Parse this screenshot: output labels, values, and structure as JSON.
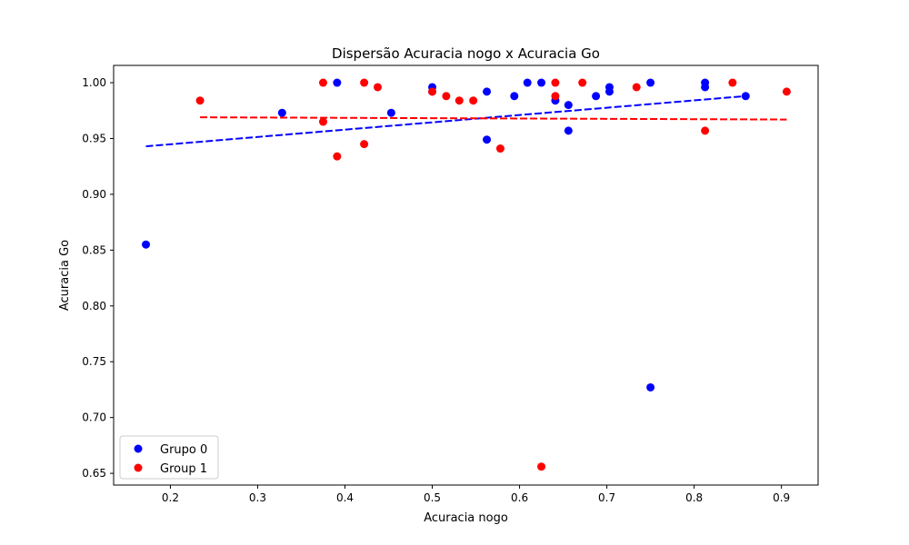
{
  "chart_data": {
    "type": "scatter",
    "title": "Dispersão Acuracia nogo x Acuracia Go",
    "xlabel": "Acuracia nogo",
    "ylabel": "Acuracia Go",
    "xlim": [
      0.135,
      0.942
    ],
    "ylim": [
      0.6395,
      1.0155
    ],
    "xticks": [
      0.2,
      0.3,
      0.4,
      0.5,
      0.6,
      0.7,
      0.8,
      0.9
    ],
    "xtick_labels": [
      "0.2",
      "0.3",
      "0.4",
      "0.5",
      "0.6",
      "0.7",
      "0.8",
      "0.9"
    ],
    "yticks": [
      0.65,
      0.7,
      0.75,
      0.8,
      0.85,
      0.9,
      0.95,
      1.0
    ],
    "ytick_labels": [
      "0.65",
      "0.70",
      "0.75",
      "0.80",
      "0.85",
      "0.90",
      "0.95",
      "1.00"
    ],
    "grid": false,
    "legend_position": "lower-left",
    "series": [
      {
        "name": "Grupo 0",
        "color": "#0000ff",
        "points": [
          [
            0.172,
            0.855
          ],
          [
            0.328,
            0.973
          ],
          [
            0.391,
            1.0
          ],
          [
            0.453,
            0.973
          ],
          [
            0.5,
            0.996
          ],
          [
            0.5,
            0.992
          ],
          [
            0.5625,
            0.992
          ],
          [
            0.5625,
            0.949
          ],
          [
            0.594,
            0.988
          ],
          [
            0.609,
            1.0
          ],
          [
            0.625,
            1.0
          ],
          [
            0.641,
            0.984
          ],
          [
            0.656,
            0.98
          ],
          [
            0.656,
            0.957
          ],
          [
            0.6875,
            0.988
          ],
          [
            0.703,
            0.996
          ],
          [
            0.703,
            0.992
          ],
          [
            0.75,
            1.0
          ],
          [
            0.75,
            0.727
          ],
          [
            0.8125,
            1.0
          ],
          [
            0.8125,
            0.996
          ],
          [
            0.859,
            0.988
          ]
        ],
        "trend": {
          "x": [
            0.172,
            0.859
          ],
          "y": [
            0.943,
            0.988
          ]
        }
      },
      {
        "name": "Group 1",
        "color": "#ff0000",
        "points": [
          [
            0.234,
            0.984
          ],
          [
            0.375,
            1.0
          ],
          [
            0.375,
            0.965
          ],
          [
            0.391,
            0.934
          ],
          [
            0.422,
            1.0
          ],
          [
            0.422,
            0.945
          ],
          [
            0.4375,
            0.996
          ],
          [
            0.5,
            0.992
          ],
          [
            0.516,
            0.988
          ],
          [
            0.531,
            0.984
          ],
          [
            0.547,
            0.984
          ],
          [
            0.578,
            0.941
          ],
          [
            0.625,
            0.656
          ],
          [
            0.641,
            1.0
          ],
          [
            0.641,
            0.988
          ],
          [
            0.672,
            1.0
          ],
          [
            0.734,
            0.996
          ],
          [
            0.8125,
            0.957
          ],
          [
            0.844,
            1.0
          ],
          [
            0.906,
            0.992
          ]
        ],
        "trend": {
          "x": [
            0.234,
            0.906
          ],
          "y": [
            0.969,
            0.967
          ]
        }
      }
    ]
  }
}
